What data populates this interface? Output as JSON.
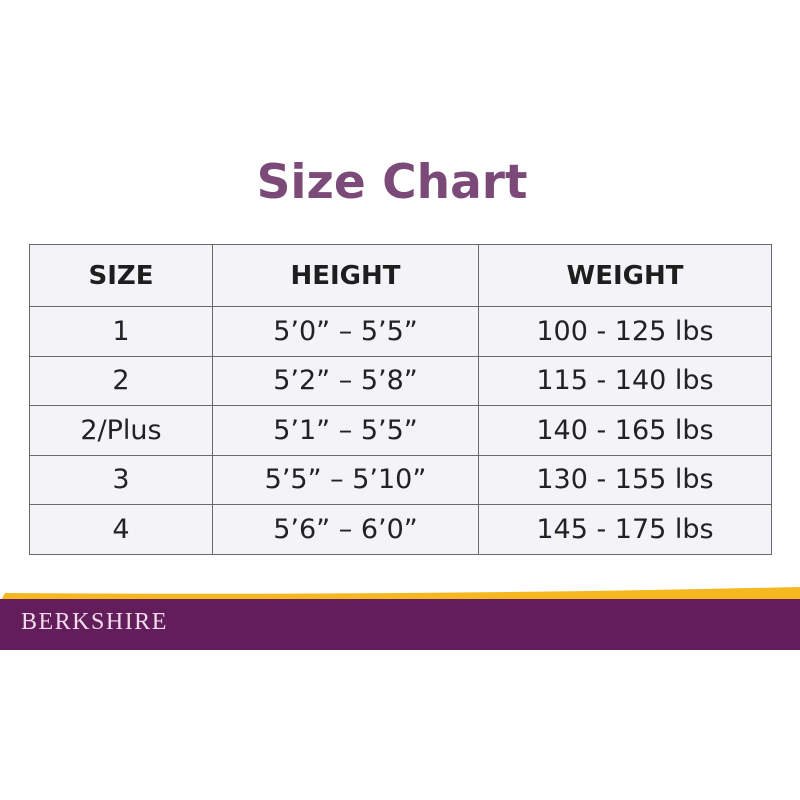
{
  "title": "Size Chart",
  "table": {
    "headers": [
      "SIZE",
      "HEIGHT",
      "WEIGHT"
    ],
    "rows": [
      [
        "1",
        "5’0” – 5’5”",
        "100 - 125 lbs"
      ],
      [
        "2",
        "5’2” – 5’8”",
        "115  - 140 lbs"
      ],
      [
        "2/Plus",
        "5’1”  – 5’5”",
        "140 - 165 lbs"
      ],
      [
        "3",
        "5’5” – 5’10”",
        "130  - 155 lbs"
      ],
      [
        "4",
        "5’6” – 6’0”",
        "145  - 175 lbs"
      ]
    ]
  },
  "footer": {
    "brand": "BERKSHIRE",
    "colors": {
      "banner": "#621d5a",
      "stripe": "#f5b820",
      "title": "#7b4a78"
    }
  }
}
